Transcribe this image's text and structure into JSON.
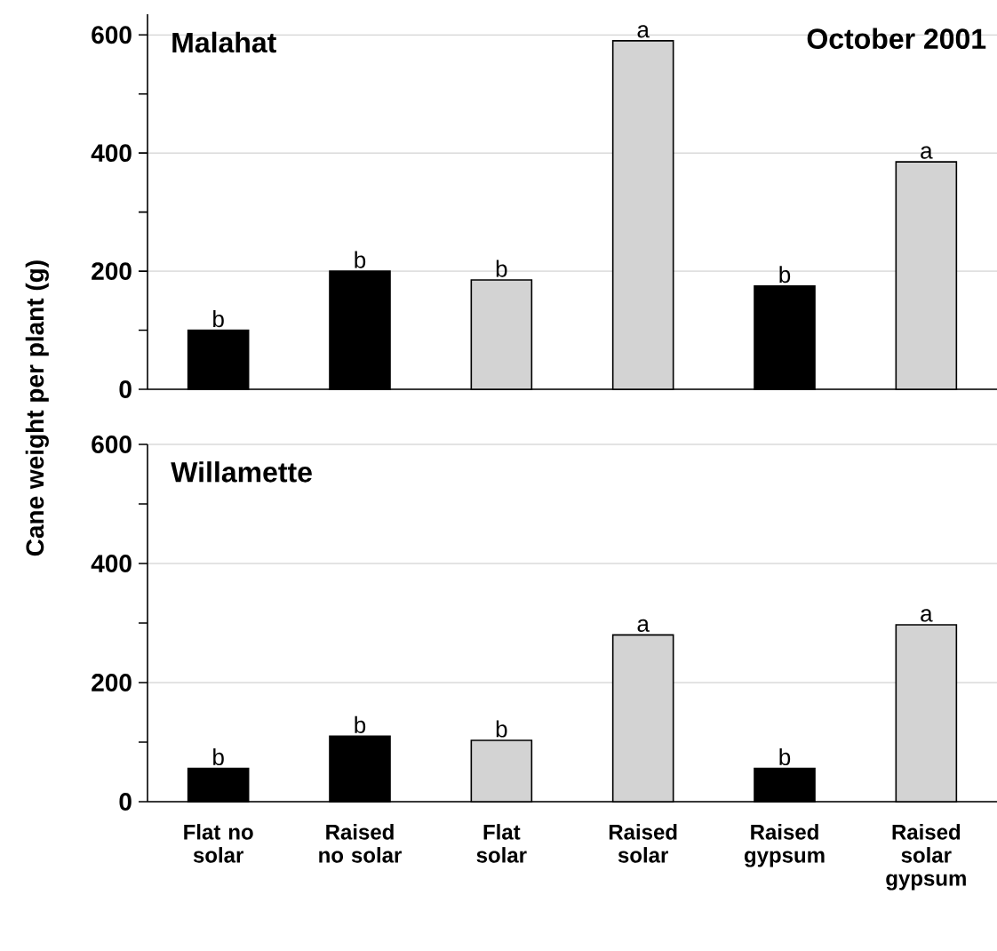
{
  "chart_data": [
    {
      "type": "bar",
      "title": "Malahat",
      "ylabel": "Cane weight per plant (g)",
      "categories": [
        "Flat no solar",
        "Raised no solar",
        "Flat solar",
        "Raised solar",
        "Raised gypsum",
        "Raised solar gypsum"
      ],
      "values": [
        100,
        200,
        185,
        590,
        175,
        385
      ],
      "colors": [
        "#000000",
        "#000000",
        "#d3d3d3",
        "#d3d3d3",
        "#000000",
        "#d3d3d3"
      ],
      "ylim": [
        0,
        635
      ],
      "yticks": [
        0,
        {
          "value": 100,
          "label": null
        },
        200,
        {
          "value": 300,
          "label": null
        },
        400,
        {
          "value": 500,
          "label": null
        },
        600
      ],
      "grid": "y",
      "tick_labels": "y",
      "annotations": [
        "October 2001",
        {
          "text": "b",
          "x": "Flat no solar",
          "y": 100
        },
        {
          "text": "b",
          "x": "Raised no solar",
          "y": 200
        },
        {
          "text": "b",
          "x": "Flat solar",
          "y": 185
        },
        {
          "text": "a",
          "x": "Raised solar",
          "y": 590
        },
        {
          "text": "b",
          "x": "Raised gypsum",
          "y": 175
        },
        {
          "text": "a",
          "x": "Raised solar gypsum",
          "y": 385
        }
      ]
    },
    {
      "type": "bar",
      "title": "Willamette",
      "categories": [
        "Flat no solar",
        "Raised no solar",
        "Flat solar",
        "Raised solar",
        "Raised gypsum",
        "Raised solar gypsum"
      ],
      "values": [
        56,
        110,
        103,
        280,
        56,
        297
      ],
      "colors": [
        "#000000",
        "#000000",
        "#d3d3d3",
        "#d3d3d3",
        "#000000",
        "#d3d3d3"
      ],
      "ylim": [
        0,
        600
      ],
      "yticks": [
        0,
        {
          "value": 100,
          "label": null
        },
        200,
        {
          "value": 300,
          "label": null
        },
        400,
        {
          "value": 500,
          "label": null
        },
        600
      ],
      "grid": "y",
      "annotations": [
        {
          "text": "b",
          "x": "Flat no solar",
          "y": 56
        },
        {
          "text": "b",
          "x": "Raised no solar",
          "y": 110
        },
        {
          "text": "b",
          "x": "Flat solar",
          "y": 103
        },
        {
          "text": "a",
          "x": "Raised solar",
          "y": 280
        },
        {
          "text": "b",
          "x": "Raised gypsum",
          "y": 56
        },
        {
          "text": "a",
          "x": "Raised solar gypsum",
          "y": 297
        }
      ]
    }
  ]
}
